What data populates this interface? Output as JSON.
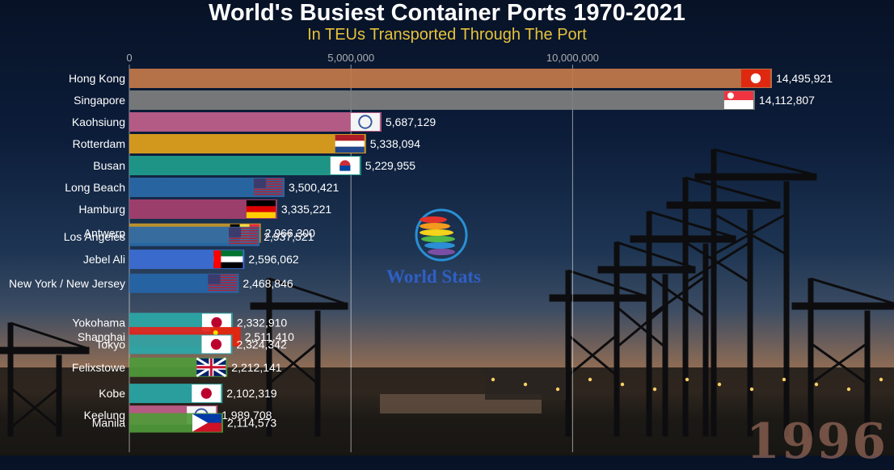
{
  "chart_data": {
    "type": "bar",
    "orientation": "horizontal",
    "title": "World's Busiest Container Ports 1970-2021",
    "subtitle": "In TEUs Transported Through The Port",
    "year": "1996",
    "xlim": [
      0,
      15500000
    ],
    "x_ticks": [
      {
        "value": 0,
        "label": "0"
      },
      {
        "value": 5000000,
        "label": "5,000,000"
      },
      {
        "value": 10000000,
        "label": "10,000,000"
      }
    ],
    "bars": [
      {
        "label": "Hong Kong",
        "value": 14495921,
        "value_label": "14,495,921",
        "color": "#c47a4a",
        "flag": "hongkong",
        "rank": 0
      },
      {
        "label": "Singapore",
        "value": 14112807,
        "value_label": "14,112,807",
        "color": "#7f7f7f",
        "flag": "singapore",
        "rank": 1
      },
      {
        "label": "Kaohsiung",
        "value": 5687129,
        "value_label": "5,687,129",
        "color": "#c25f8c",
        "flag": "taiwan-seal",
        "rank": 2
      },
      {
        "label": "Rotterdam",
        "value": 5338094,
        "value_label": "5,338,094",
        "color": "#e3a31b",
        "flag": "netherlands",
        "rank": 3
      },
      {
        "label": "Busan",
        "value": 5229955,
        "value_label": "5,229,955",
        "color": "#1f9e8c",
        "flag": "korea",
        "rank": 4
      },
      {
        "label": "Long Beach",
        "value": 3500421,
        "value_label": "3,500,421",
        "color": "#2a6aa8",
        "flag": "usa",
        "rank": 5
      },
      {
        "label": "Hamburg",
        "value": 3335221,
        "value_label": "3,335,221",
        "color": "#a8406f",
        "flag": "germany",
        "rank": 6
      },
      {
        "label": "Antwerp",
        "value": 2966300,
        "value_label": "2,966,300",
        "color": "#c89a2a",
        "flag": "belgium",
        "rank": 7.1
      },
      {
        "label": "Los Angeles",
        "value": 2937521,
        "value_label": "2,937,521",
        "color": "#2a6aa8",
        "flag": "usa",
        "rank": 7.25
      },
      {
        "label": "Jebel Ali",
        "value": 2596062,
        "value_label": "2,596,062",
        "color": "#3d6fd6",
        "flag": "uae",
        "rank": 8.3
      },
      {
        "label": "New York / New Jersey",
        "value": 2468846,
        "value_label": "2,468,846",
        "color": "#2666a8",
        "flag": "usa",
        "rank": 9.4
      },
      {
        "label": "Yokohama",
        "value": 2332910,
        "value_label": "2,332,910",
        "color": "#2aa8a8",
        "flag": "japan",
        "rank": 11.2
      },
      {
        "label": "Shanghai",
        "value": 2511410,
        "value_label": "2,511,410",
        "color": "#e2231a",
        "flag": "china",
        "rank": 11.85
      },
      {
        "label": "Tokyo",
        "value": 2324342,
        "value_label": "2,324,342",
        "color": "#2aa8a8",
        "flag": "japan",
        "rank": 12.2
      },
      {
        "label": "Felixstowe",
        "value": 2212141,
        "value_label": "2,212,141",
        "color": "#4f9a3a",
        "flag": "uk",
        "rank": 13.25
      },
      {
        "label": "Kobe",
        "value": 2102319,
        "value_label": "2,102,319",
        "color": "#2aa8a8",
        "flag": "japan",
        "rank": 14.45
      },
      {
        "label": "Keelung",
        "value": 1989708,
        "value_label": "1,989,708",
        "color": "#c25f8c",
        "flag": "taiwan-seal",
        "rank": 15.45
      },
      {
        "label": "Manila",
        "value": 2114573,
        "value_label": "2,114,573",
        "color": "#4f9a3a",
        "flag": "philippines",
        "rank": 15.8
      }
    ]
  },
  "branding": {
    "name": "World Stats"
  }
}
